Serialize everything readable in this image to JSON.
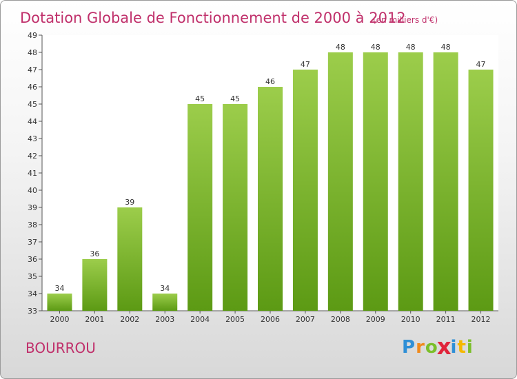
{
  "chart_data": {
    "type": "bar",
    "title": "Dotation Globale de Fonctionnement de 2000 à 2012",
    "subtitle": "(en milliers d'€)",
    "categories": [
      "2000",
      "2001",
      "2002",
      "2003",
      "2004",
      "2005",
      "2006",
      "2007",
      "2008",
      "2009",
      "2010",
      "2011",
      "2012"
    ],
    "values": [
      34,
      36,
      39,
      34,
      45,
      45,
      46,
      47,
      48,
      48,
      48,
      48,
      47
    ],
    "ylim": [
      33,
      49
    ],
    "yticks": [
      33,
      34,
      35,
      36,
      37,
      38,
      39,
      40,
      41,
      42,
      43,
      44,
      45,
      46,
      47,
      48,
      49
    ],
    "xlabel": "",
    "ylabel": "",
    "grid": false,
    "colors": {
      "bar_top": "#9ccd4b",
      "bar_bottom": "#5c9a14",
      "title": "#c0306b"
    }
  },
  "commune": "BOURROU",
  "logo": {
    "text": "Proxiti",
    "letters": [
      {
        "ch": "P",
        "color": "#2f8fd6"
      },
      {
        "ch": "r",
        "color": "#f08a1c"
      },
      {
        "ch": "o",
        "color": "#7bbf2a"
      },
      {
        "ch": "x",
        "color": "#e0243a"
      },
      {
        "ch": "i",
        "color": "#2f8fd6"
      },
      {
        "ch": "t",
        "color": "#f5b800"
      },
      {
        "ch": "i",
        "color": "#7bbf2a"
      }
    ]
  }
}
